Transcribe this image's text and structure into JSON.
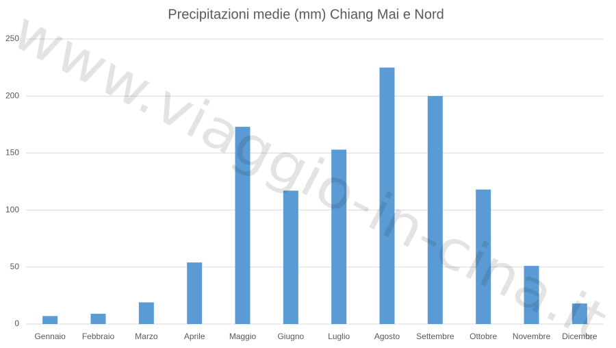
{
  "chart_data": {
    "type": "bar",
    "title": "Precipitazioni medie (mm) Chiang Mai e Nord",
    "categories": [
      "Gennaio",
      "Febbraio",
      "Marzo",
      "Aprile",
      "Maggio",
      "Giugno",
      "Luglio",
      "Agosto",
      "Settembre",
      "Ottobre",
      "Novembre",
      "Dicembre"
    ],
    "values": [
      7,
      9,
      19,
      54,
      173,
      117,
      153,
      225,
      200,
      118,
      51,
      18
    ],
    "color": "#5b9bd5",
    "ylim": [
      0,
      250
    ],
    "yticks": [
      0,
      50,
      100,
      150,
      200,
      250
    ],
    "grid": true,
    "watermark": "www.viaggio-in-cina.it"
  }
}
